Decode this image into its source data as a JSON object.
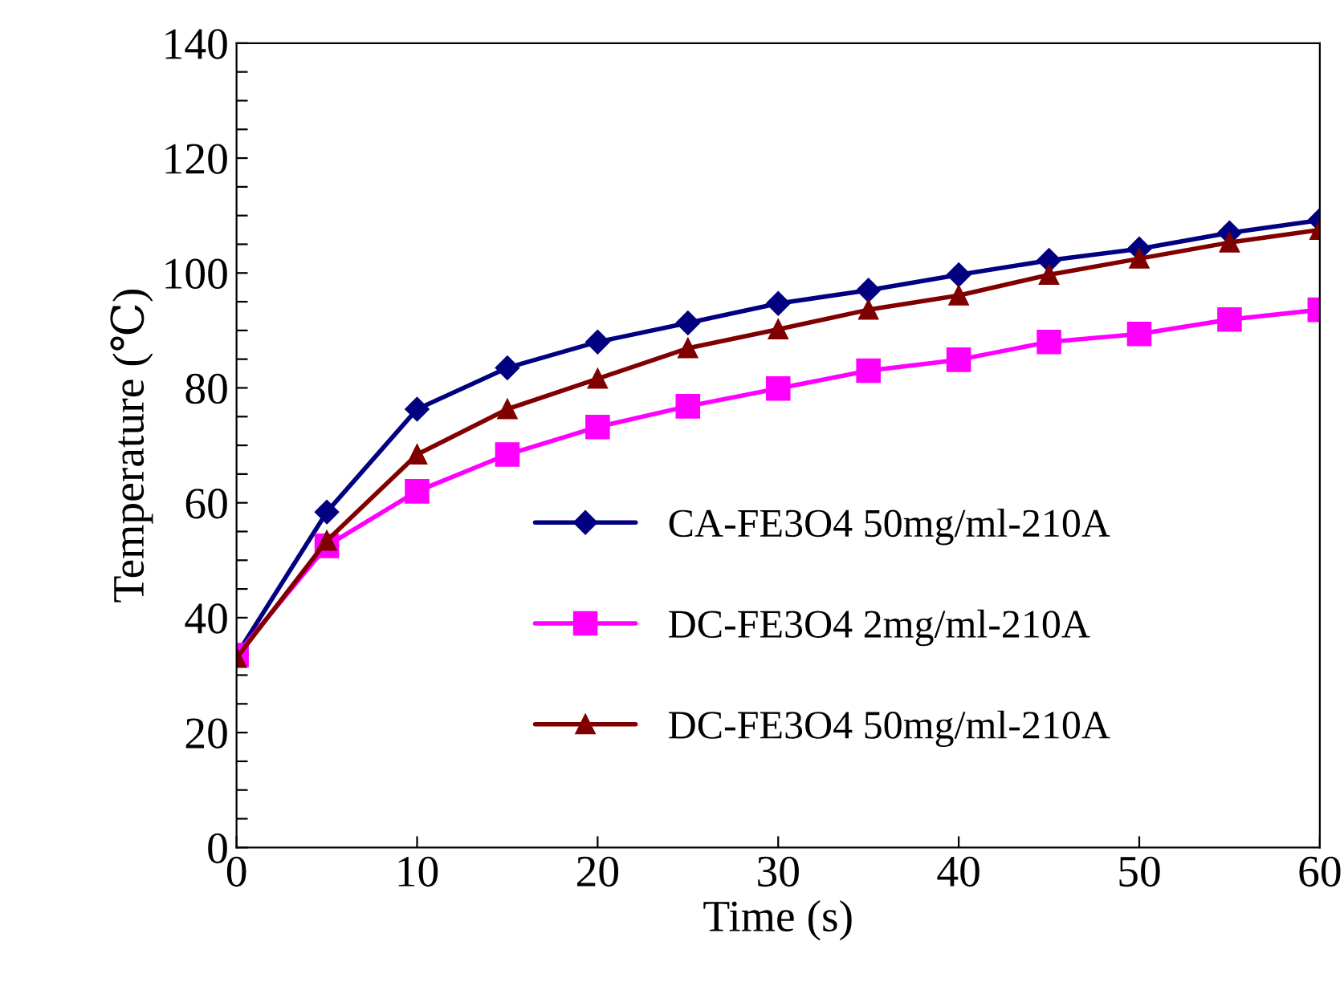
{
  "chart_data": {
    "type": "line",
    "xlabel": "Time (s)",
    "ylabel": "Temperature (℃)",
    "x": [
      0,
      5,
      10,
      15,
      20,
      25,
      30,
      35,
      40,
      45,
      50,
      55,
      60
    ],
    "xlim": [
      0,
      60
    ],
    "xticks": [
      0,
      10,
      20,
      30,
      40,
      50,
      60
    ],
    "ylim": [
      0,
      140
    ],
    "yticks": [
      0,
      {
        "value": 5,
        "label": null
      },
      {
        "value": 10,
        "label": null
      },
      {
        "value": 15,
        "label": null
      },
      20,
      {
        "value": 25,
        "label": null
      },
      {
        "value": 30,
        "label": null
      },
      {
        "value": 35,
        "label": null
      },
      40,
      {
        "value": 45,
        "label": null
      },
      {
        "value": 50,
        "label": null
      },
      {
        "value": 55,
        "label": null
      },
      60,
      {
        "value": 65,
        "label": null
      },
      {
        "value": 70,
        "label": null
      },
      {
        "value": 75,
        "label": null
      },
      80,
      {
        "value": 85,
        "label": null
      },
      {
        "value": 90,
        "label": null
      },
      {
        "value": 95,
        "label": null
      },
      100,
      {
        "value": 105,
        "label": null
      },
      {
        "value": 110,
        "label": null
      },
      {
        "value": 115,
        "label": null
      },
      120,
      {
        "value": 125,
        "label": null
      },
      {
        "value": 130,
        "label": null
      },
      {
        "value": 135,
        "label": null
      },
      140
    ],
    "grid": false,
    "legend": "bottom right",
    "line_style": "solid",
    "series": [
      {
        "name": "CA-FE3O4 50mg/ml-210A",
        "color": "#000080",
        "marker": "diamond",
        "values": [
          33.5,
          58.4,
          76.3,
          83.5,
          88,
          91.3,
          94.7,
          97,
          99.7,
          102.2,
          104.2,
          107,
          109.2
        ]
      },
      {
        "name": "DC-FE3O4 2mg/ml-210A",
        "color": "#ff00ff",
        "marker": "square",
        "values": [
          33.5,
          52.5,
          62,
          68.4,
          73.2,
          76.8,
          79.9,
          83,
          84.9,
          88,
          89.4,
          91.9,
          93.6
        ]
      },
      {
        "name": "DC-FE3O4 50mg/ml-210A",
        "color": "#800000",
        "marker": "triangle",
        "values": [
          33,
          53.4,
          68.4,
          76.3,
          81.6,
          86.9,
          90.2,
          93.6,
          96.1,
          99.7,
          102.5,
          105.3,
          107.5
        ]
      }
    ]
  }
}
